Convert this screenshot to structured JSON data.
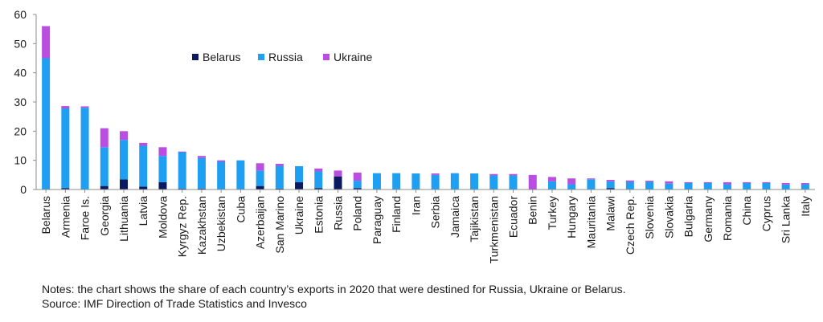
{
  "chart_data": {
    "type": "bar",
    "stacked": true,
    "title": "",
    "xlabel": "",
    "ylabel": "",
    "ylim": [
      0,
      60
    ],
    "yticks": [
      0,
      10,
      20,
      30,
      40,
      50,
      60
    ],
    "grid": false,
    "legend_position": "top-center",
    "categories": [
      "Belarus",
      "Armenia",
      "Faroe Is.",
      "Georgia",
      "Lithuania",
      "Latvia",
      "Moldova",
      "Kyrgyz Rep.",
      "Kazakhstan",
      "Uzbekistan",
      "Cuba",
      "Azerbaijan",
      "San Marino",
      "Ukraine",
      "Estonia",
      "Russia",
      "Poland",
      "Paraguay",
      "Finland",
      "Iran",
      "Serbia",
      "Jamaica",
      "Tajikistan",
      "Turkmenistan",
      "Ecuador",
      "Benin",
      "Turkey",
      "Hungary",
      "Mauritania",
      "Malawi",
      "Czech Rep.",
      "Slovenia",
      "Slovakia",
      "Bulgaria",
      "Germany",
      "Romania",
      "China",
      "Cyprus",
      "Sri Lanka",
      "Italy"
    ],
    "series": [
      {
        "name": "Belarus",
        "color": "#0b1a5e",
        "values": [
          0,
          0.5,
          0,
          1.2,
          3.5,
          1.0,
          2.5,
          0.3,
          0.3,
          0,
          0,
          1.2,
          0.3,
          2.5,
          0.5,
          4.5,
          0.5,
          0,
          0,
          0,
          0,
          0,
          0,
          0,
          0,
          0,
          0,
          0,
          0,
          0.5,
          0,
          0,
          0,
          0,
          0,
          0,
          0,
          0,
          0,
          0
        ]
      },
      {
        "name": "Russia",
        "color": "#1e9ff2",
        "values": [
          45,
          27.3,
          28,
          13.3,
          13.5,
          14.0,
          9.0,
          12.5,
          10.5,
          9.5,
          10.0,
          5.3,
          7.8,
          5.5,
          5.7,
          0,
          2.5,
          5.6,
          5.6,
          5.5,
          5.0,
          5.6,
          5.5,
          4.8,
          4.8,
          0,
          2.8,
          1.8,
          3.5,
          2.3,
          2.6,
          2.6,
          2.0,
          2.2,
          2.2,
          1.8,
          2.2,
          2.2,
          1.7,
          1.8
        ]
      },
      {
        "name": "Ukraine",
        "color": "#b94ee0",
        "values": [
          11,
          0.8,
          0.5,
          6.5,
          3.0,
          1.0,
          3.0,
          0.2,
          0.7,
          0.5,
          0,
          2.5,
          0.7,
          0,
          1.0,
          2.0,
          2.8,
          0,
          0,
          0,
          0.5,
          0,
          0,
          0.5,
          0.5,
          5.0,
          1.5,
          2.0,
          0.3,
          0.5,
          0.5,
          0.4,
          0.8,
          0.3,
          0.3,
          0.7,
          0.3,
          0.3,
          0.5,
          0.4
        ]
      }
    ]
  },
  "notes": {
    "line1": "Notes: the chart shows the share of each country’s exports in 2020 that were destined for Russia, Ukraine or Belarus.",
    "line2": "Source: IMF Direction of Trade Statistics and Invesco"
  }
}
